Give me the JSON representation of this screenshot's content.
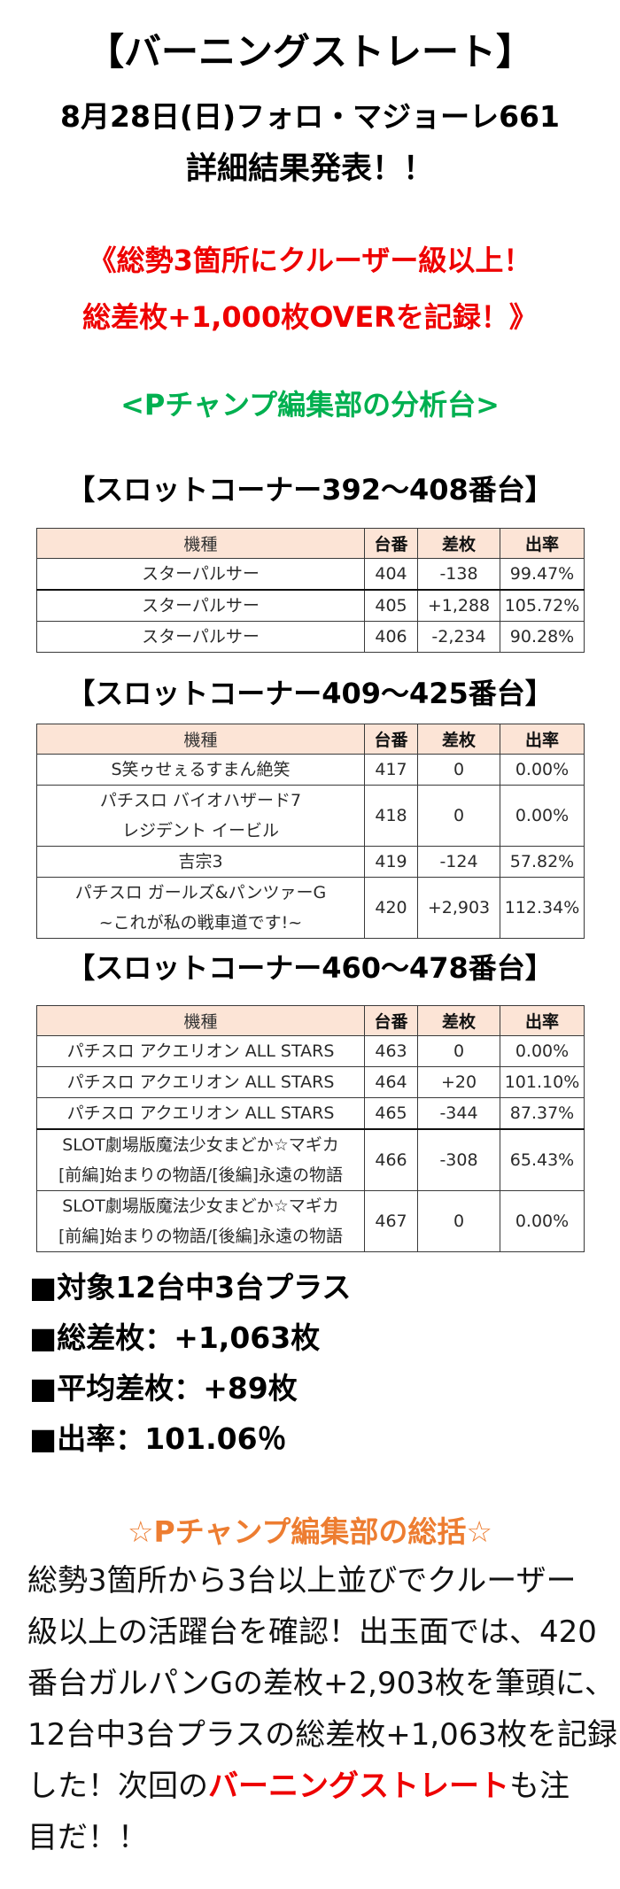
{
  "header": {
    "title": "【バーニングストレート】",
    "subtitle": "8月28日(日)フォロ・マジョーレ661",
    "announcement": "詳細結果発表！！"
  },
  "highlight": {
    "line1": "《総勢3箇所にクルーザー級以上！",
    "line2": "総差枚+1,000枚OVERを記録！》"
  },
  "analysis_label": "<Pチャンプ編集部の分析台>",
  "table_columns": {
    "model": "機種",
    "machine_no": "台番",
    "diff": "差枚",
    "rate": "出率"
  },
  "sections": [
    {
      "heading": "【スロットコーナー392～408番台】",
      "rows": [
        {
          "model": [
            "スターパルサー"
          ],
          "machine_no": "404",
          "diff": "-138",
          "rate": "99.47%"
        },
        {
          "model": [
            "スターパルサー"
          ],
          "machine_no": "405",
          "diff": "+1,288",
          "rate": "105.72%"
        },
        {
          "model": [
            "スターパルサー"
          ],
          "machine_no": "406",
          "diff": "-2,234",
          "rate": "90.28%"
        }
      ]
    },
    {
      "heading": "【スロットコーナー409～425番台】",
      "rows": [
        {
          "model": [
            "S笑ゥせぇるすまん絶笑"
          ],
          "machine_no": "417",
          "diff": "0",
          "rate": "0.00%"
        },
        {
          "model": [
            "パチスロ バイオハザード7",
            "レジデント イービル"
          ],
          "machine_no": "418",
          "diff": "0",
          "rate": "0.00%"
        },
        {
          "model": [
            "吉宗3"
          ],
          "machine_no": "419",
          "diff": "-124",
          "rate": "57.82%"
        },
        {
          "model": [
            "パチスロ ガールズ&パンツァーG",
            "~これが私の戦車道です!~"
          ],
          "machine_no": "420",
          "diff": "+2,903",
          "rate": "112.34%"
        }
      ]
    },
    {
      "heading": "【スロットコーナー460～478番台】",
      "rows": [
        {
          "model": [
            "パチスロ アクエリオン ALL STARS"
          ],
          "machine_no": "463",
          "diff": "0",
          "rate": "0.00%"
        },
        {
          "model": [
            "パチスロ アクエリオン ALL STARS"
          ],
          "machine_no": "464",
          "diff": "+20",
          "rate": "101.10%"
        },
        {
          "model": [
            "パチスロ アクエリオン ALL STARS"
          ],
          "machine_no": "465",
          "diff": "-344",
          "rate": "87.37%"
        },
        {
          "model": [
            "SLOT劇場版魔法少女まどか☆マギカ",
            "[前編]始まりの物語/[後編]永遠の物語"
          ],
          "machine_no": "466",
          "diff": "-308",
          "rate": "65.43%"
        },
        {
          "model": [
            "SLOT劇場版魔法少女まどか☆マギカ",
            "[前編]始まりの物語/[後編]永遠の物語"
          ],
          "machine_no": "467",
          "diff": "0",
          "rate": "0.00%"
        }
      ]
    }
  ],
  "summary": {
    "bullet_glyph": "■",
    "items": [
      "対象12台中3台プラス",
      "総差枚：+1,063枚",
      "平均差枚：+89枚",
      "出率：101.06％"
    ]
  },
  "editor_summary": {
    "title": "☆Pチャンプ編集部の総括☆",
    "lines": [
      "総勢3箇所から3台以上並びでクルーザー",
      "級以上の活躍台を確認！出玉面では、420",
      "番台ガルパンGの差枚+2,903枚を筆頭に、",
      "12台中3台プラスの総差枚+1,063枚を記録",
      {
        "before": "した！次回の",
        "highlight": "バーニングストレート",
        "after": "も注"
      },
      "目だ！！"
    ]
  },
  "colors": {
    "highlight_red": "#ee0000",
    "analysis_green": "#00b050",
    "summary_orange": "#ed7d31",
    "table_header_bg": "#fce4d6"
  }
}
